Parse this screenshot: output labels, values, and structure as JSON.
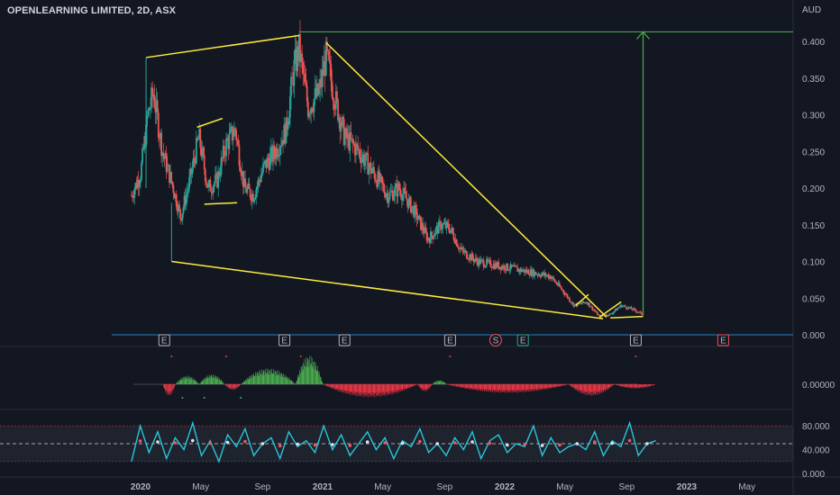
{
  "header": {
    "title": "OPENLEARNING LIMITED, 2D, ASX",
    "currency": "AUD"
  },
  "colors": {
    "bg": "#131722",
    "up": "#26a69a",
    "down": "#ef5350",
    "trend": "#ffeb3b",
    "target": "#4caf50",
    "grid": "#2a2e39",
    "text": "#b2b5be",
    "baseline": "#2962ff",
    "osc_up": "#4caf50",
    "osc_down": "#f23645",
    "rsi": "#26c6da",
    "sig": "#f7525f"
  },
  "chart_data": [
    {
      "type": "candlestick",
      "title": "OPENLEARNING LIMITED, 2D, ASX",
      "ylabel": "AUD",
      "ylim": [
        0,
        0.42
      ],
      "y_ticks": [
        "0.400",
        "0.350",
        "0.300",
        "0.250",
        "0.200",
        "0.150",
        "0.100",
        "0.050",
        "0.000"
      ],
      "x_ticks": [
        "2020",
        "May",
        "Sep",
        "2021",
        "May",
        "Sep",
        "2022",
        "May",
        "Sep",
        "2023",
        "May"
      ],
      "price_path": [
        {
          "t": 2019.95,
          "p": 0.19
        },
        {
          "t": 2020.0,
          "p": 0.22
        },
        {
          "t": 2020.04,
          "p": 0.3
        },
        {
          "t": 2020.07,
          "p": 0.33
        },
        {
          "t": 2020.12,
          "p": 0.25
        },
        {
          "t": 2020.18,
          "p": 0.2
        },
        {
          "t": 2020.22,
          "p": 0.16
        },
        {
          "t": 2020.27,
          "p": 0.21
        },
        {
          "t": 2020.32,
          "p": 0.27
        },
        {
          "t": 2020.37,
          "p": 0.2
        },
        {
          "t": 2020.42,
          "p": 0.21
        },
        {
          "t": 2020.47,
          "p": 0.26
        },
        {
          "t": 2020.52,
          "p": 0.28
        },
        {
          "t": 2020.57,
          "p": 0.2
        },
        {
          "t": 2020.62,
          "p": 0.19
        },
        {
          "t": 2020.68,
          "p": 0.23
        },
        {
          "t": 2020.74,
          "p": 0.25
        },
        {
          "t": 2020.8,
          "p": 0.28
        },
        {
          "t": 2020.84,
          "p": 0.36
        },
        {
          "t": 2020.87,
          "p": 0.39
        },
        {
          "t": 2020.92,
          "p": 0.31
        },
        {
          "t": 2020.98,
          "p": 0.33
        },
        {
          "t": 2021.02,
          "p": 0.38
        },
        {
          "t": 2021.06,
          "p": 0.33
        },
        {
          "t": 2021.12,
          "p": 0.27
        },
        {
          "t": 2021.2,
          "p": 0.25
        },
        {
          "t": 2021.28,
          "p": 0.22
        },
        {
          "t": 2021.36,
          "p": 0.19
        },
        {
          "t": 2021.42,
          "p": 0.2
        },
        {
          "t": 2021.5,
          "p": 0.17
        },
        {
          "t": 2021.58,
          "p": 0.13
        },
        {
          "t": 2021.65,
          "p": 0.15
        },
        {
          "t": 2021.7,
          "p": 0.145
        },
        {
          "t": 2021.76,
          "p": 0.115
        },
        {
          "t": 2021.85,
          "p": 0.1
        },
        {
          "t": 2021.95,
          "p": 0.095
        },
        {
          "t": 2022.05,
          "p": 0.09
        },
        {
          "t": 2022.15,
          "p": 0.085
        },
        {
          "t": 2022.25,
          "p": 0.08
        },
        {
          "t": 2022.32,
          "p": 0.06
        },
        {
          "t": 2022.38,
          "p": 0.04
        },
        {
          "t": 2022.45,
          "p": 0.045
        },
        {
          "t": 2022.52,
          "p": 0.025
        },
        {
          "t": 2022.58,
          "p": 0.028
        },
        {
          "t": 2022.64,
          "p": 0.04
        },
        {
          "t": 2022.7,
          "p": 0.035
        },
        {
          "t": 2022.76,
          "p": 0.028
        }
      ],
      "drawings": [
        {
          "name": "trend-line-top",
          "x1": 2020.03,
          "y1": 0.378,
          "x2": 2020.87,
          "y2": 0.408
        },
        {
          "name": "trend-line-upper",
          "x1": 2021.02,
          "y1": 0.398,
          "x2": 2022.56,
          "y2": 0.024
        },
        {
          "name": "trend-line-lower",
          "x1": 2020.17,
          "y1": 0.1,
          "x2": 2022.54,
          "y2": 0.022
        },
        {
          "name": "flag-top",
          "x1": 2020.31,
          "y1": 0.283,
          "x2": 2020.45,
          "y2": 0.295
        },
        {
          "name": "flag-bottom",
          "x1": 2020.35,
          "y1": 0.178,
          "x2": 2020.53,
          "y2": 0.18
        },
        {
          "name": "small-flag-top",
          "x1": 2022.39,
          "y1": 0.04,
          "x2": 2022.46,
          "y2": 0.055
        },
        {
          "name": "small-flag-bottom",
          "x1": 2022.52,
          "y1": 0.024,
          "x2": 2022.64,
          "y2": 0.045
        },
        {
          "name": "small-base",
          "x1": 2022.58,
          "y1": 0.023,
          "x2": 2022.76,
          "y2": 0.025
        }
      ],
      "target_level": 0.413,
      "target_arrow": {
        "x": 2022.76,
        "from": 0.026,
        "to": 0.413
      },
      "events": [
        {
          "t": 2020.13,
          "label": "E",
          "kind": "earnings"
        },
        {
          "t": 2020.79,
          "label": "E",
          "kind": "earnings"
        },
        {
          "t": 2021.12,
          "label": "E",
          "kind": "earnings"
        },
        {
          "t": 2021.7,
          "label": "E",
          "kind": "earnings"
        },
        {
          "t": 2021.95,
          "label": "S",
          "kind": "split"
        },
        {
          "t": 2022.1,
          "label": "E",
          "kind": "earnings-future"
        },
        {
          "t": 2022.72,
          "label": "E",
          "kind": "earnings"
        },
        {
          "t": 2023.2,
          "label": "E",
          "kind": "earnings-pending"
        }
      ]
    },
    {
      "type": "histogram",
      "ylabel": "",
      "y_ticks": [
        "0.00000"
      ],
      "segments": [
        {
          "from": 2020.12,
          "to": 2020.19,
          "v": -0.4
        },
        {
          "from": 2020.19,
          "to": 2020.32,
          "v": 0.3
        },
        {
          "from": 2020.32,
          "to": 2020.46,
          "v": 0.35
        },
        {
          "from": 2020.46,
          "to": 2020.55,
          "v": -0.2
        },
        {
          "from": 2020.55,
          "to": 2020.85,
          "v": 0.55
        },
        {
          "from": 2020.85,
          "to": 2021.0,
          "v": 1.0
        },
        {
          "from": 2021.0,
          "to": 2021.52,
          "v": -0.45
        },
        {
          "from": 2021.52,
          "to": 2021.6,
          "v": -0.25
        },
        {
          "from": 2021.6,
          "to": 2021.68,
          "v": 0.15
        },
        {
          "from": 2021.68,
          "to": 2022.35,
          "v": -0.3
        },
        {
          "from": 2022.35,
          "to": 2022.6,
          "v": -0.4
        },
        {
          "from": 2022.6,
          "to": 2022.83,
          "v": -0.15
        }
      ]
    },
    {
      "type": "line",
      "ylabel": "",
      "ylim": [
        0,
        100
      ],
      "y_ticks": [
        "80.000",
        "40.000",
        "0.000"
      ],
      "band": [
        20,
        80
      ],
      "midline": 50,
      "series": [
        {
          "name": "",
          "values": [
            20,
            80,
            35,
            70,
            25,
            60,
            40,
            85,
            30,
            55,
            20,
            65,
            45,
            75,
            30,
            50,
            60,
            25,
            70,
            45,
            55,
            35,
            80,
            40,
            65,
            30,
            50,
            70,
            40,
            60,
            25,
            55,
            45,
            75,
            35,
            50,
            30,
            60,
            40,
            70,
            25,
            55,
            65,
            35,
            50,
            45,
            80,
            30,
            60,
            35,
            45,
            50,
            40,
            70,
            30,
            55,
            45,
            85,
            30,
            50,
            55
          ]
        }
      ],
      "x_range": [
        2019.95,
        2022.83
      ]
    }
  ]
}
